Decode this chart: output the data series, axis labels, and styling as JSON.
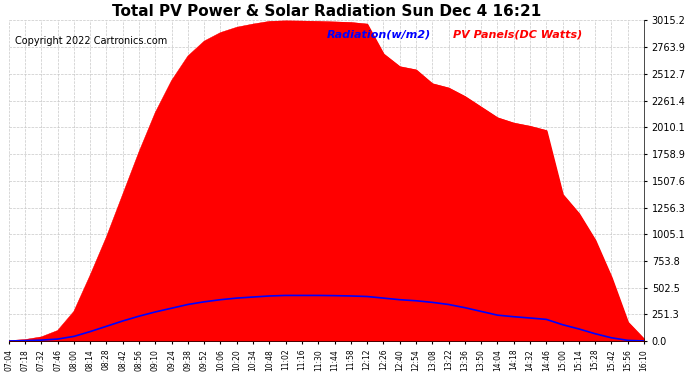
{
  "title": "Total PV Power & Solar Radiation Sun Dec 4 16:21",
  "copyright": "Copyright 2022 Cartronics.com",
  "legend_radiation": "Radiation(w/m2)",
  "legend_pv": "PV Panels(DC Watts)",
  "background_color": "#ffffff",
  "plot_bg_color": "#ffffff",
  "grid_color": "#c8c8c8",
  "radiation_color": "#0000ff",
  "pv_color": "#ff0000",
  "pv_fill_color": "#ff0000",
  "y_max": 3015.2,
  "y_min": 0.0,
  "y_ticks": [
    0.0,
    251.3,
    502.5,
    753.8,
    1005.1,
    1256.3,
    1507.6,
    1758.9,
    2010.1,
    2261.4,
    2512.7,
    2763.9,
    3015.2
  ],
  "x_labels": [
    "07:04",
    "07:18",
    "07:32",
    "07:46",
    "08:00",
    "08:14",
    "08:28",
    "08:42",
    "08:56",
    "09:10",
    "09:24",
    "09:38",
    "09:52",
    "10:06",
    "10:20",
    "10:34",
    "10:48",
    "11:02",
    "11:16",
    "11:30",
    "11:44",
    "11:58",
    "12:12",
    "12:26",
    "12:40",
    "12:54",
    "13:08",
    "13:22",
    "13:36",
    "13:50",
    "14:04",
    "14:18",
    "14:32",
    "14:46",
    "15:00",
    "15:14",
    "15:28",
    "15:42",
    "15:56",
    "16:10"
  ],
  "pv_values": [
    5,
    15,
    40,
    100,
    280,
    620,
    980,
    1380,
    1780,
    2150,
    2450,
    2680,
    2820,
    2900,
    2950,
    2980,
    3005,
    3010,
    3008,
    3005,
    3000,
    2995,
    2980,
    2700,
    2580,
    2550,
    2420,
    2380,
    2300,
    2200,
    2100,
    2050,
    2020,
    1980,
    1380,
    1200,
    950,
    600,
    180,
    20
  ],
  "radiation_values": [
    2,
    5,
    10,
    20,
    45,
    90,
    140,
    190,
    235,
    275,
    310,
    345,
    370,
    390,
    405,
    415,
    425,
    430,
    430,
    430,
    428,
    425,
    420,
    405,
    390,
    380,
    365,
    345,
    315,
    280,
    245,
    230,
    218,
    205,
    155,
    115,
    70,
    32,
    8,
    2
  ],
  "rad_scale": 6.0,
  "title_fontsize": 11,
  "copyright_fontsize": 7,
  "ytick_fontsize": 7,
  "xtick_fontsize": 5.5,
  "legend_fontsize": 8
}
